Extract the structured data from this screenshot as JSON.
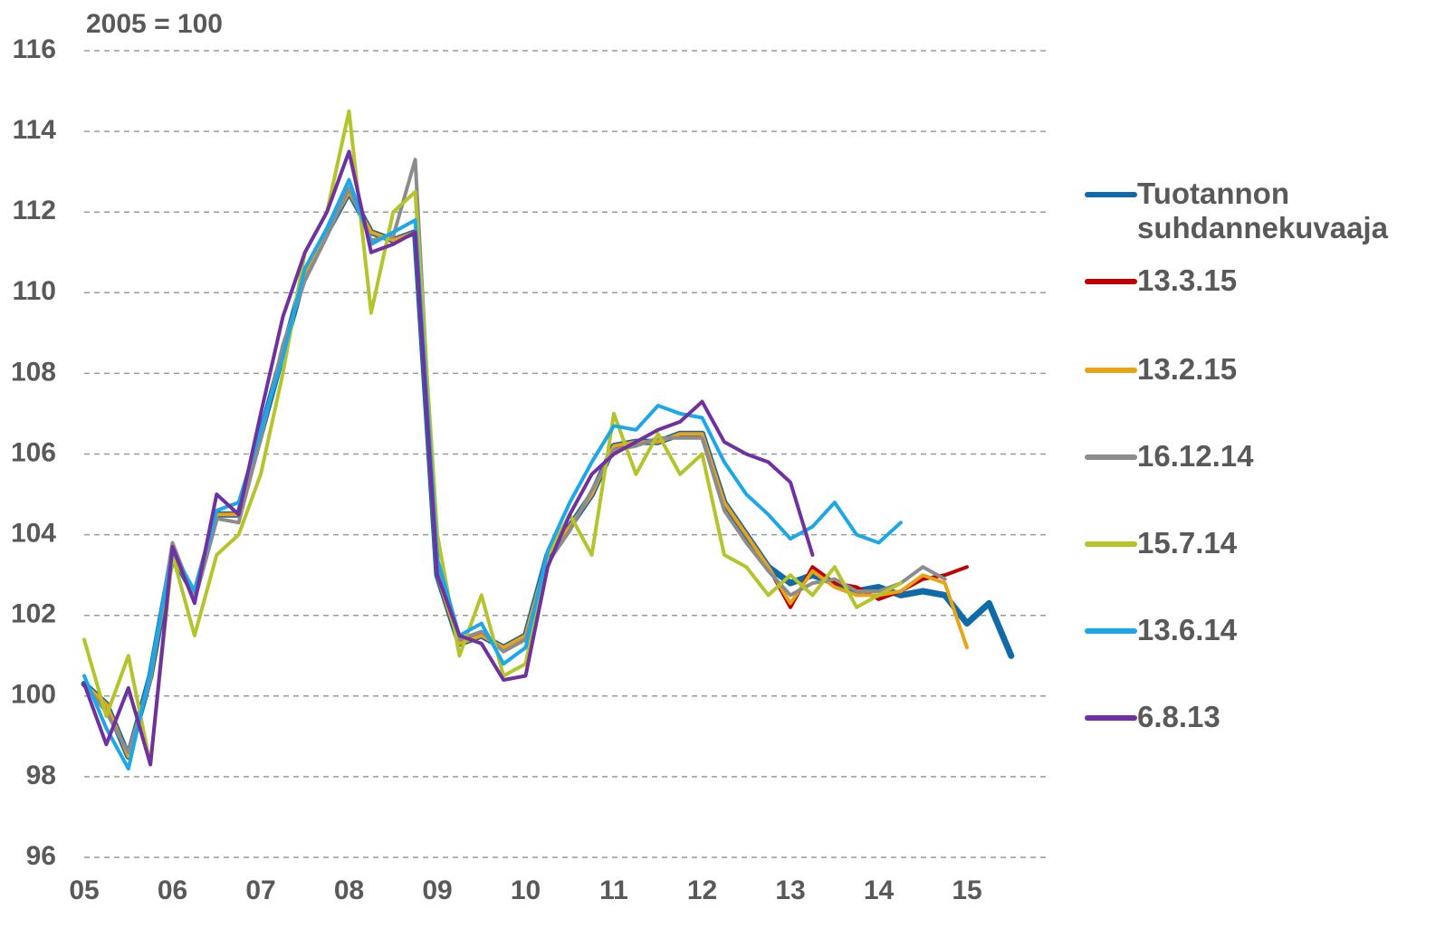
{
  "chart_data": {
    "type": "line",
    "ylabel": "2005 = 100",
    "x": [
      2005,
      2005.25,
      2005.5,
      2005.75,
      2006,
      2006.25,
      2006.5,
      2006.75,
      2007,
      2007.25,
      2007.5,
      2007.75,
      2008,
      2008.25,
      2008.5,
      2008.75,
      2009,
      2009.25,
      2009.5,
      2009.75,
      2010,
      2010.25,
      2010.5,
      2010.75,
      2011,
      2011.25,
      2011.5,
      2011.75,
      2012,
      2012.25,
      2012.5,
      2012.75,
      2013,
      2013.25,
      2013.5,
      2013.75,
      2014,
      2014.25,
      2014.5,
      2014.75,
      2015,
      2015.25,
      2015.5
    ],
    "xlim": [
      2005,
      2015.95
    ],
    "xticks": [
      {
        "value": 2005,
        "label": "05"
      },
      {
        "value": 2006,
        "label": "06"
      },
      {
        "value": 2007,
        "label": "07"
      },
      {
        "value": 2008,
        "label": "08"
      },
      {
        "value": 2009,
        "label": "09"
      },
      {
        "value": 2010,
        "label": "10"
      },
      {
        "value": 2011,
        "label": "11"
      },
      {
        "value": 2012,
        "label": "12"
      },
      {
        "value": 2013,
        "label": "13"
      },
      {
        "value": 2014,
        "label": "14"
      },
      {
        "value": 2015,
        "label": "15"
      }
    ],
    "ylim": [
      96,
      116
    ],
    "yticks": [
      96,
      98,
      100,
      102,
      104,
      106,
      108,
      110,
      112,
      114,
      116
    ],
    "grid": true,
    "series": [
      {
        "name": "Tuotannon suhdannekuvaaja",
        "color": "#0e6aa8",
        "values": [
          100.3,
          99.8,
          98.5,
          100.5,
          103.5,
          102.5,
          104.5,
          104.5,
          106.5,
          108.5,
          110.5,
          111.5,
          112.5,
          111.5,
          111.3,
          111.5,
          103,
          101.3,
          101.5,
          101.2,
          101.5,
          103.5,
          104.2,
          105,
          106.2,
          106.3,
          106.3,
          106.5,
          106.5,
          104.8,
          104,
          103.2,
          102.8,
          103,
          102.8,
          102.6,
          102.7,
          102.5,
          102.6,
          102.5,
          101.8,
          102.3,
          101
        ]
      },
      {
        "name": "13.3.15",
        "color": "#c00000",
        "values": [
          100.3,
          99.8,
          98.5,
          100.5,
          103.5,
          102.5,
          104.5,
          104.5,
          106.5,
          108.5,
          110.5,
          111.5,
          112.5,
          111.5,
          111.3,
          111.5,
          103,
          101.3,
          101.5,
          101.2,
          101.5,
          103.5,
          104.2,
          105,
          106.2,
          106.3,
          106.3,
          106.5,
          106.5,
          104.8,
          104,
          103.2,
          102.2,
          103.2,
          102.8,
          102.7,
          102.4,
          102.6,
          102.9,
          103,
          103.2,
          null,
          null
        ]
      },
      {
        "name": "13.2.15",
        "color": "#e8a317",
        "values": [
          100.3,
          99.8,
          98.5,
          100.5,
          103.5,
          102.5,
          104.5,
          104.5,
          106.5,
          108.5,
          110.5,
          111.5,
          112.5,
          111.5,
          111.3,
          111.5,
          103,
          101.3,
          101.5,
          101.2,
          101.5,
          103.5,
          104.2,
          105,
          106.2,
          106.3,
          106.3,
          106.5,
          106.5,
          104.8,
          104,
          103.2,
          102.3,
          103.1,
          102.7,
          102.5,
          102.5,
          102.6,
          103,
          102.8,
          101.2,
          null,
          null
        ]
      },
      {
        "name": "16.12.14",
        "color": "#8c8c8c",
        "values": [
          100.3,
          99.6,
          98.6,
          100.4,
          103.8,
          102.4,
          104.4,
          104.3,
          106.4,
          108.7,
          110.3,
          111.4,
          112.6,
          111.3,
          111.4,
          113.3,
          103.2,
          101.4,
          101.6,
          101.1,
          101.4,
          103.3,
          104.1,
          105.1,
          106.1,
          106.2,
          106.4,
          106.4,
          106.4,
          104.6,
          103.8,
          103.1,
          102.5,
          102.8,
          102.9,
          102.6,
          102.6,
          102.8,
          103.2,
          102.9,
          null,
          null,
          null
        ]
      },
      {
        "name": "15.7.14",
        "color": "#b5c42a",
        "values": [
          101.4,
          99.5,
          101,
          98.3,
          103.5,
          101.5,
          103.5,
          104,
          105.5,
          108,
          111,
          112,
          114.5,
          109.5,
          112,
          112.5,
          104,
          101,
          102.5,
          100.5,
          100.8,
          103.5,
          104.5,
          103.5,
          107,
          105.5,
          106.5,
          105.5,
          106,
          103.5,
          103.2,
          102.5,
          103,
          102.5,
          103.2,
          102.2,
          102.5,
          102.8,
          null,
          null,
          null,
          null,
          null
        ]
      },
      {
        "name": "13.6.14",
        "color": "#1ca7e8",
        "values": [
          100.5,
          99.2,
          98.2,
          100.6,
          103.6,
          102.6,
          104.6,
          104.8,
          106.6,
          108.4,
          110.6,
          111.6,
          112.8,
          111.2,
          111.5,
          111.8,
          103.4,
          101.5,
          101.8,
          100.8,
          101.2,
          103.6,
          104.8,
          105.8,
          106.7,
          106.6,
          107.2,
          107,
          106.9,
          105.8,
          105,
          104.5,
          103.9,
          104.2,
          104.8,
          104,
          103.8,
          104.3,
          null,
          null,
          null,
          null,
          null
        ]
      },
      {
        "name": "6.8.13",
        "color": "#7030a0",
        "values": [
          100.3,
          98.8,
          100.2,
          98.3,
          103.7,
          102.3,
          105,
          104.5,
          107,
          109.4,
          111,
          112,
          113.5,
          111,
          111.2,
          111.5,
          103,
          101.5,
          101.3,
          100.4,
          100.5,
          103.2,
          104.5,
          105.5,
          106,
          106.3,
          106.6,
          106.8,
          107.3,
          106.3,
          106,
          105.8,
          105.3,
          103.5,
          null,
          null,
          null,
          null,
          null,
          null,
          null,
          null,
          null
        ]
      }
    ]
  }
}
